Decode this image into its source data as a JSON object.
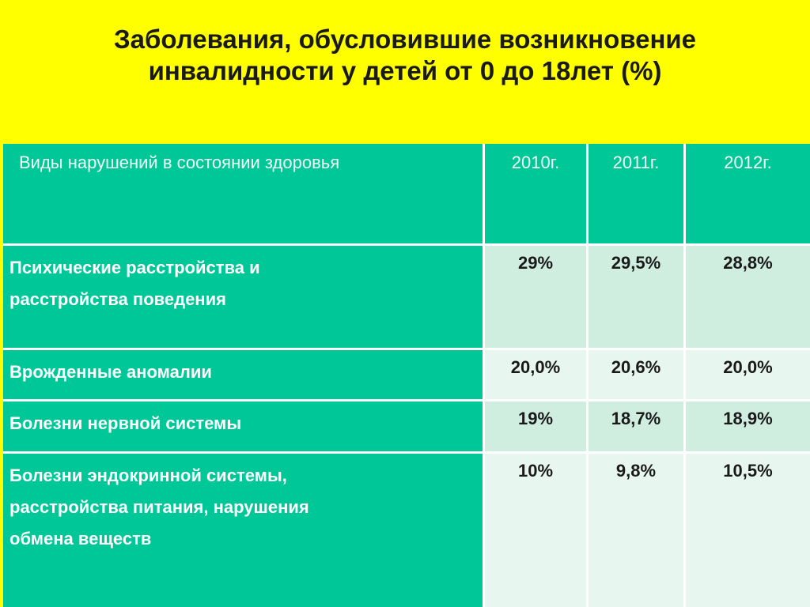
{
  "title": {
    "line1": "Заболевания, обусловившие возникновение",
    "line2": "инвалидности  у детей от 0 до 18лет (%)"
  },
  "table": {
    "headers": [
      "Виды нарушений в состоянии здоровья",
      "2010г.",
      "2011г.",
      "2012г."
    ],
    "rows": [
      {
        "label_lines": [
          "Психические расстройства и",
          "расстройства поведения"
        ],
        "values": [
          "29%",
          "29,5%",
          "28,8%"
        ]
      },
      {
        "label_lines": [
          "Врожденные аномалии"
        ],
        "values": [
          "20,0%",
          "20,6%",
          "20,0%"
        ]
      },
      {
        "label_lines": [
          "Болезни нервной системы"
        ],
        "values": [
          "19%",
          "18,7%",
          "18,9%"
        ]
      },
      {
        "label_lines": [
          "Болезни эндокринной системы,",
          "расстройства питания, нарушения",
          "обмена веществ"
        ],
        "values": [
          "10%",
          "9,8%",
          "10,5%"
        ]
      }
    ]
  },
  "colors": {
    "background": "#ffff00",
    "header_fill": "#00c797",
    "row_dark": "#cfeee0",
    "row_light": "#e7f7ef"
  }
}
